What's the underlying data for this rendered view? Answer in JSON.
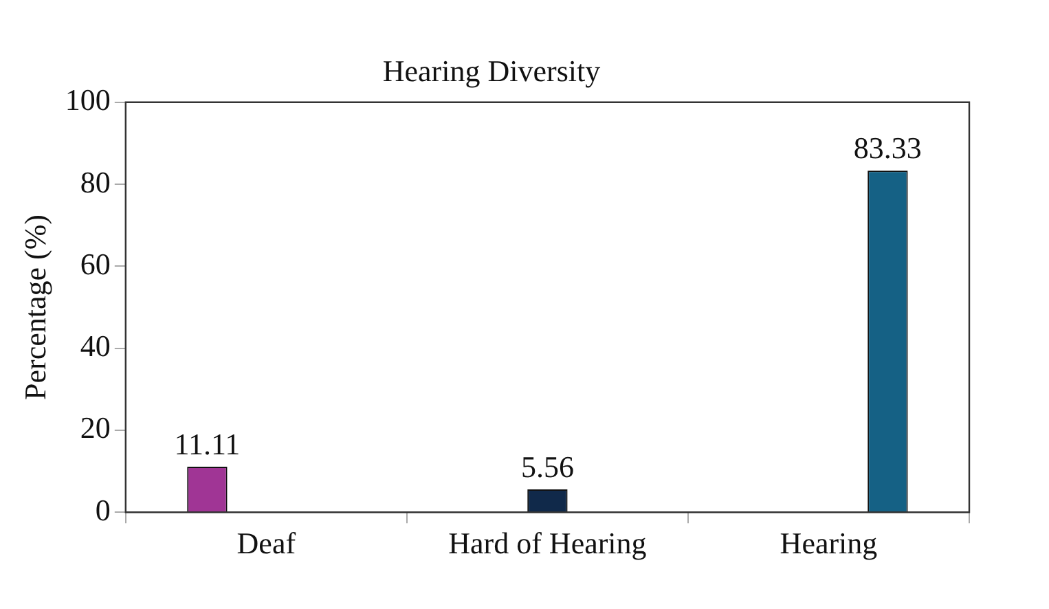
{
  "chart_data": {
    "type": "bar",
    "title": "Hearing Diversity",
    "ylabel": "Percentage (%)",
    "categories": [
      "Deaf",
      "Hard of Hearing",
      "Hearing"
    ],
    "series": [
      {
        "color": "#a03595",
        "values": [
          11.11,
          null,
          null
        ]
      },
      {
        "color": "#10294a",
        "values": [
          null,
          5.56,
          null
        ]
      },
      {
        "color": "#156185",
        "values": [
          null,
          null,
          83.33
        ]
      }
    ],
    "ylim": [
      0,
      100
    ],
    "yticks": [
      0,
      20,
      40,
      60,
      80,
      100
    ],
    "data_labels": true,
    "legend": false
  }
}
